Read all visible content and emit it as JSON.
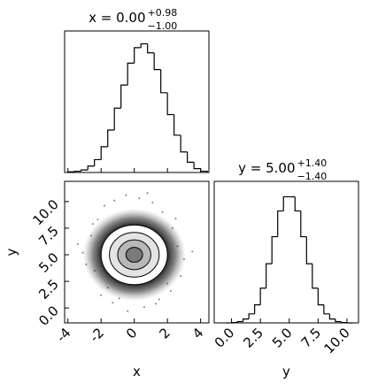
{
  "chart_data": [
    {
      "type": "histogram",
      "title": "x = 0.00",
      "title_sup": "+0.98",
      "title_sub": "−1.00",
      "bins": [
        -4.0,
        -3.6,
        -3.2,
        -2.8,
        -2.4,
        -2.0,
        -1.6,
        -1.2,
        -0.8,
        -0.4,
        0.0,
        0.4,
        0.8,
        1.2,
        1.6,
        2.0,
        2.4,
        2.8,
        3.2,
        3.6,
        4.0,
        4.4
      ],
      "values": [
        0.5,
        1,
        2,
        5,
        10,
        20,
        33,
        50,
        68,
        85,
        97,
        100,
        93,
        80,
        62,
        45,
        29,
        16,
        8,
        3,
        1
      ],
      "xlim": [
        -4.2,
        4.5
      ],
      "ylim": [
        0,
        110
      ],
      "xticks": [
        -4,
        -2,
        0,
        2,
        4
      ],
      "tick_labels": false,
      "color": "#000000"
    },
    {
      "type": "scatter",
      "xlabel": "x",
      "ylabel": "y",
      "x": [
        -3.1,
        -2.6,
        -2.4,
        -2.9,
        -2.2,
        -1.8,
        -1.2,
        -0.5,
        0.3,
        1.1,
        1.7,
        2.3,
        2.6,
        3.0,
        2.8,
        2.2,
        1.5,
        0.6,
        -0.4,
        -1.3,
        -2.0,
        -3.4,
        3.5,
        -0.9,
        0.8,
        2.0,
        -2.5,
        2.5,
        -1.6,
        1.3
      ],
      "y": [
        5.2,
        6.8,
        3.5,
        4.1,
        8.3,
        9.6,
        10.1,
        10.6,
        10.3,
        9.9,
        9.0,
        7.5,
        5.8,
        4.6,
        3.0,
        1.6,
        0.8,
        0.1,
        -0.3,
        0.5,
        1.2,
        6.0,
        5.3,
        0.9,
        10.8,
        2.3,
        7.9,
        8.4,
        1.9,
        0.4
      ],
      "contours": {
        "center": [
          0,
          5
        ],
        "scale": [
          1,
          1.4
        ],
        "levels": [
          2,
          1.5,
          1,
          0.5
        ],
        "fills": [
          "#ffffff",
          "#e4e4e4",
          "#b8b8b8",
          "#7a7a7a"
        ]
      },
      "xlim": [
        -4.2,
        4.5
      ],
      "ylim": [
        -1.4,
        11.9
      ],
      "color": "#000000",
      "xticks": [
        -4,
        -2,
        0,
        2,
        4
      ],
      "yticks": [
        {
          "value": 0,
          "label": "0.0"
        },
        {
          "value": 2.5,
          "label": "2.5"
        },
        {
          "value": 5,
          "label": "5.0"
        },
        {
          "value": 7.5,
          "label": "7.5"
        },
        {
          "value": 10,
          "label": "10.0"
        }
      ]
    },
    {
      "type": "histogram",
      "title": "y = 5.00",
      "title_sup": "+1.40",
      "title_sub": "−1.40",
      "xlabel": "y",
      "bins": [
        -0.5,
        0.0,
        0.5,
        1.0,
        1.5,
        2.0,
        2.5,
        3.0,
        3.5,
        4.0,
        4.5,
        5.0,
        5.5,
        6.0,
        6.5,
        7.0,
        7.5,
        8.0,
        8.5,
        9.0,
        9.5,
        10.0,
        10.5
      ],
      "values": [
        0,
        0.3,
        1,
        3,
        7,
        14,
        27,
        46,
        67,
        87,
        98,
        98,
        87,
        67,
        46,
        27,
        14,
        7,
        3,
        1,
        0.3,
        0
      ],
      "xlim": [
        -1.5,
        11.0
      ],
      "ylim": [
        0,
        110
      ],
      "tick_labels": true,
      "color": "#000000",
      "xticks": [
        {
          "value": 0,
          "label": "0.0"
        },
        {
          "value": 2.5,
          "label": "2.5"
        },
        {
          "value": 5,
          "label": "5.0"
        },
        {
          "value": 7.5,
          "label": "7.5"
        },
        {
          "value": 10,
          "label": "10.0"
        }
      ]
    }
  ]
}
